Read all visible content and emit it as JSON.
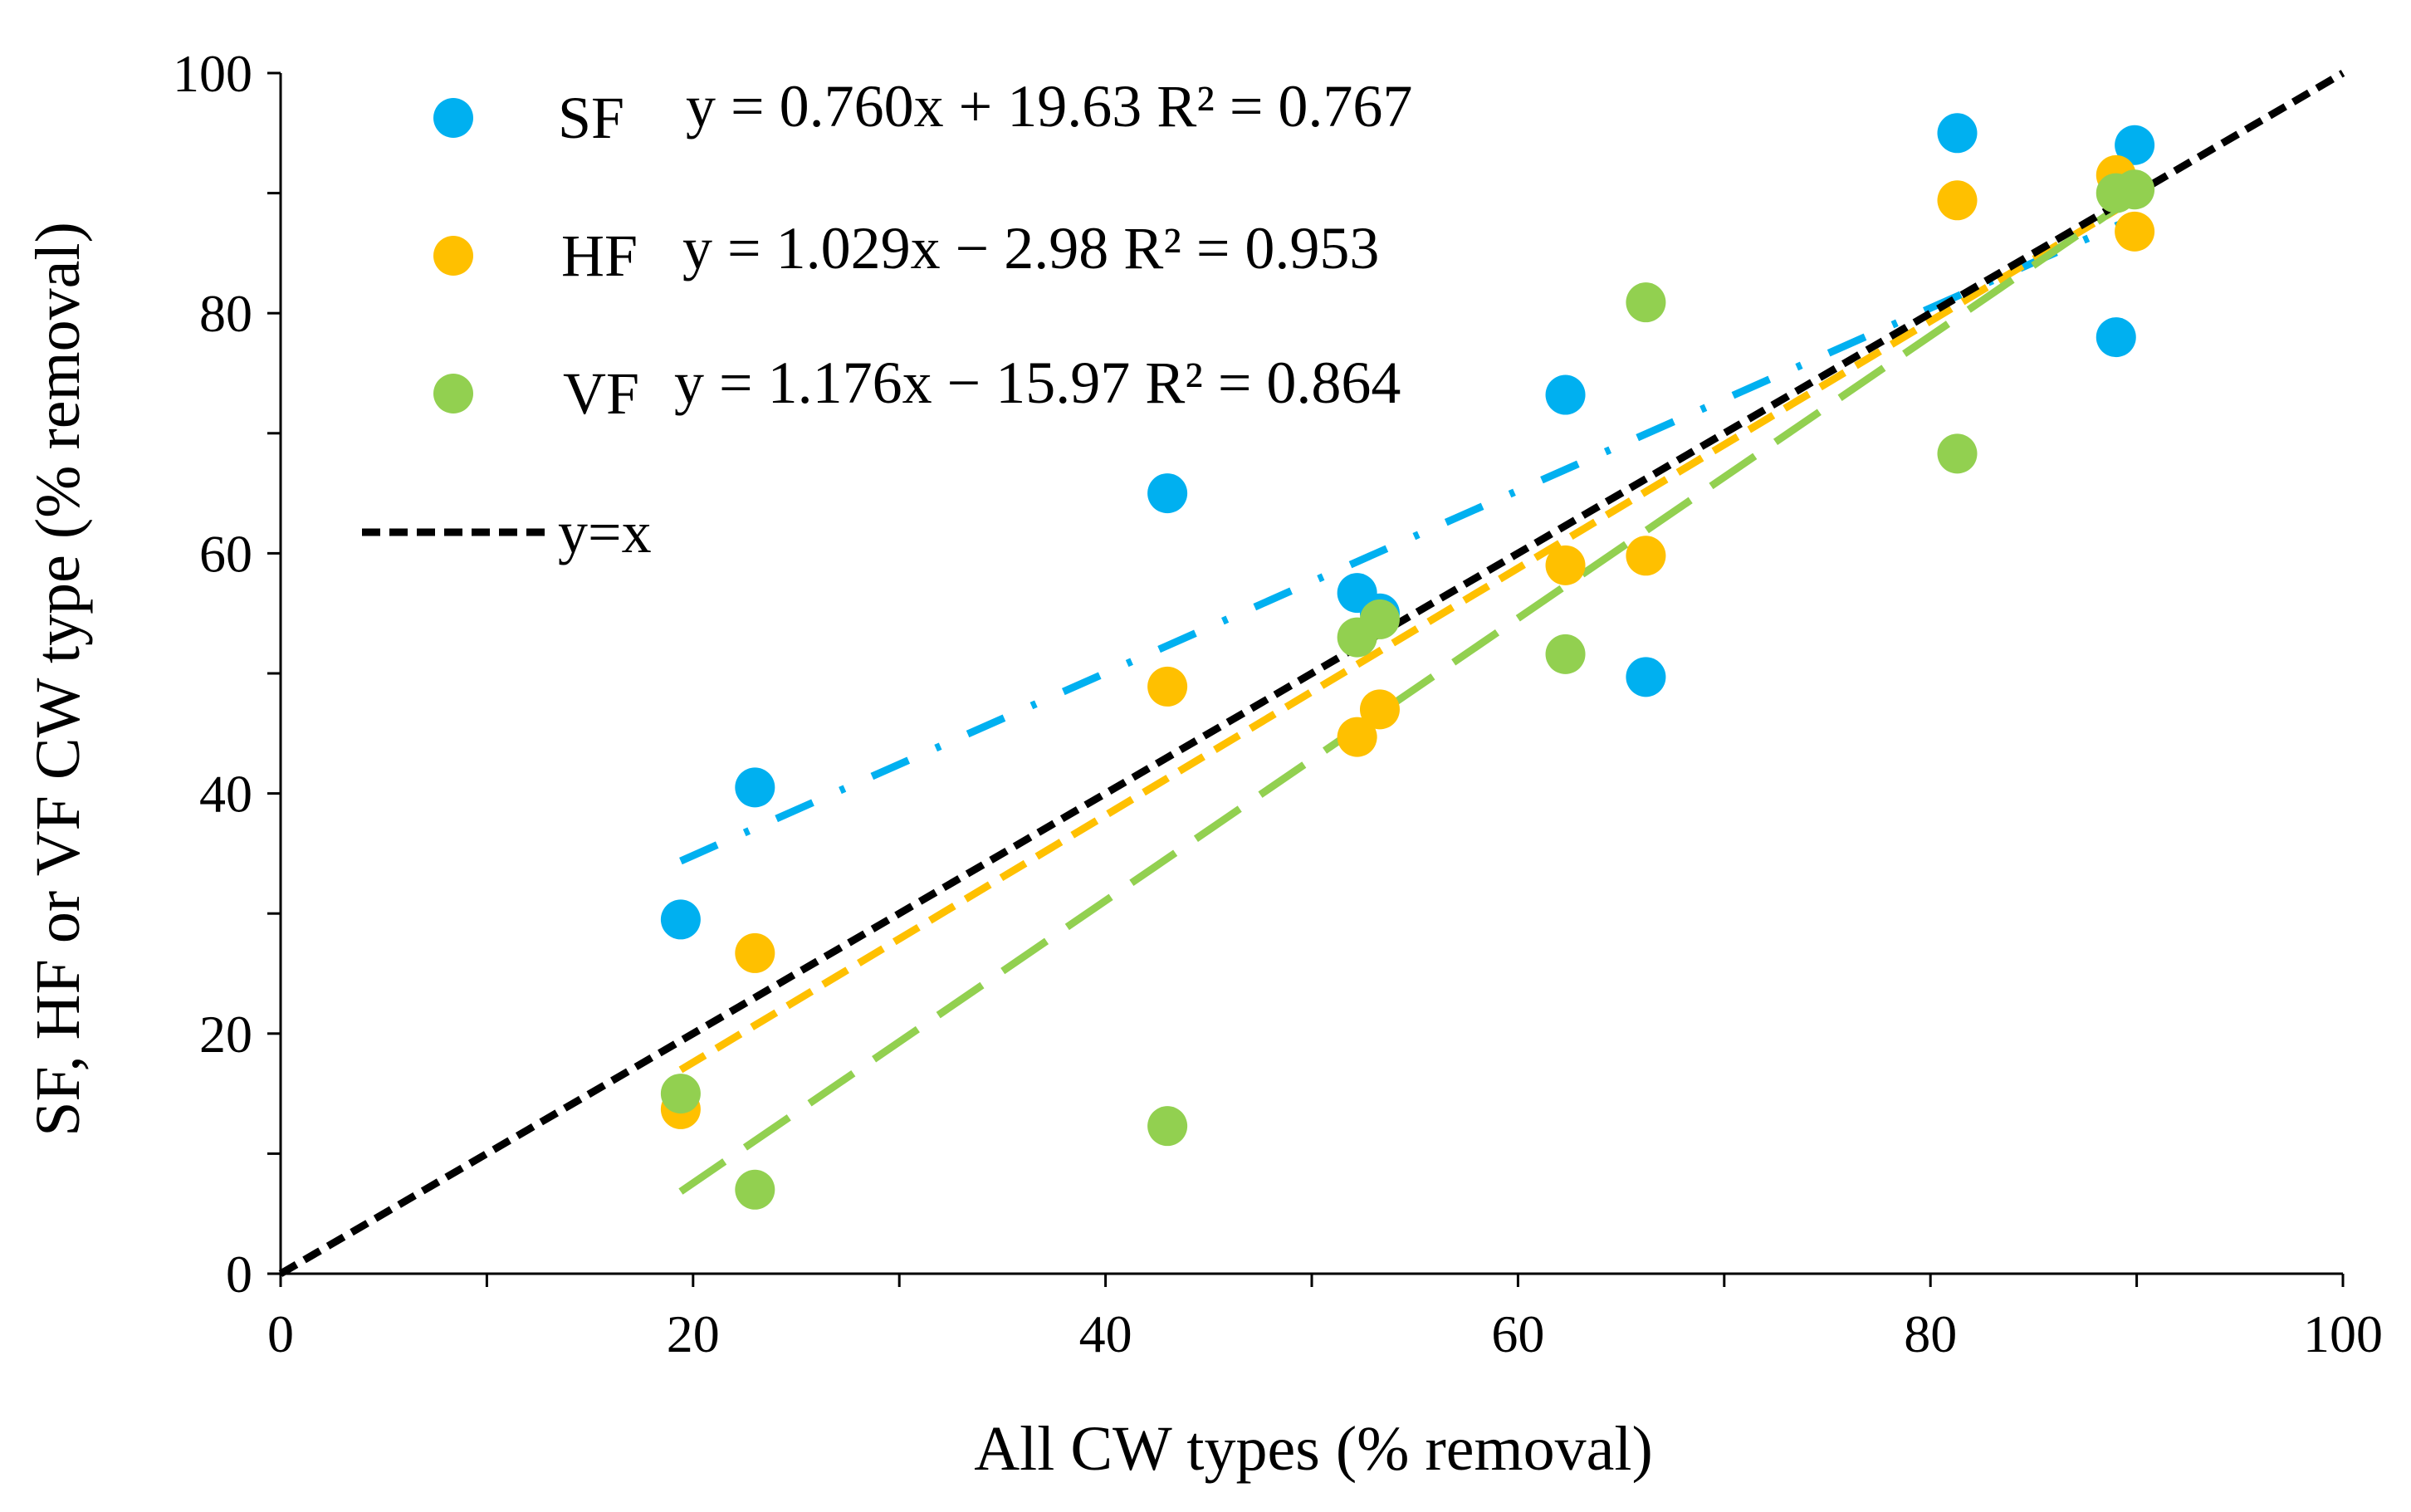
{
  "chart_data": {
    "type": "scatter",
    "title": "",
    "xlabel": "All CW types (% removal)",
    "ylabel": "SF, HF or VF CW type (% removal)",
    "xlim": [
      0,
      100
    ],
    "ylim": [
      0,
      100
    ],
    "x_ticks": [
      "0",
      "20",
      "40",
      "60",
      "80",
      "100"
    ],
    "y_ticks": [
      "0",
      "20",
      "40",
      "60",
      "80",
      "100"
    ],
    "grid": false,
    "legend_position": "top-left",
    "series": [
      {
        "name": "SF",
        "equation": "y = 0.760x + 19.63 R² = 0.767",
        "color": "#00b0f0",
        "trend_style": "dash-dot",
        "slope": 0.76,
        "intercept": 19.63,
        "points": [
          {
            "x": 19.4,
            "y": 29.5
          },
          {
            "x": 23.0,
            "y": 40.5
          },
          {
            "x": 43.0,
            "y": 65.0
          },
          {
            "x": 52.2,
            "y": 56.7
          },
          {
            "x": 53.3,
            "y": 55.0
          },
          {
            "x": 62.3,
            "y": 73.2
          },
          {
            "x": 66.2,
            "y": 49.7
          },
          {
            "x": 81.3,
            "y": 95.0
          },
          {
            "x": 89.0,
            "y": 78.0
          },
          {
            "x": 89.9,
            "y": 94.0
          }
        ]
      },
      {
        "name": "HF",
        "equation": "y = 1.029x − 2.98 R² = 0.953",
        "color": "#ffc000",
        "trend_style": "dash",
        "slope": 1.029,
        "intercept": -2.98,
        "points": [
          {
            "x": 19.4,
            "y": 13.7
          },
          {
            "x": 23.0,
            "y": 26.7
          },
          {
            "x": 43.0,
            "y": 48.9
          },
          {
            "x": 52.2,
            "y": 44.7
          },
          {
            "x": 53.3,
            "y": 47.0
          },
          {
            "x": 62.3,
            "y": 59.0
          },
          {
            "x": 66.2,
            "y": 59.8
          },
          {
            "x": 81.3,
            "y": 89.4
          },
          {
            "x": 89.0,
            "y": 91.5
          },
          {
            "x": 89.9,
            "y": 86.8
          }
        ]
      },
      {
        "name": "VF",
        "equation": "y = 1.176x − 15.97 R² = 0.864",
        "color": "#92d050",
        "trend_style": "long-dash",
        "slope": 1.176,
        "intercept": -15.97,
        "points": [
          {
            "x": 19.4,
            "y": 15.0
          },
          {
            "x": 23.0,
            "y": 7.0
          },
          {
            "x": 43.0,
            "y": 12.3
          },
          {
            "x": 52.2,
            "y": 53.0
          },
          {
            "x": 53.3,
            "y": 54.5
          },
          {
            "x": 62.3,
            "y": 51.6
          },
          {
            "x": 66.2,
            "y": 80.9
          },
          {
            "x": 81.3,
            "y": 68.3
          },
          {
            "x": 89.0,
            "y": 90.0
          },
          {
            "x": 89.9,
            "y": 90.3
          }
        ]
      }
    ],
    "reference_line": {
      "name": "y=x",
      "color": "#000000",
      "style": "dash",
      "slope": 1,
      "intercept": 0
    }
  }
}
